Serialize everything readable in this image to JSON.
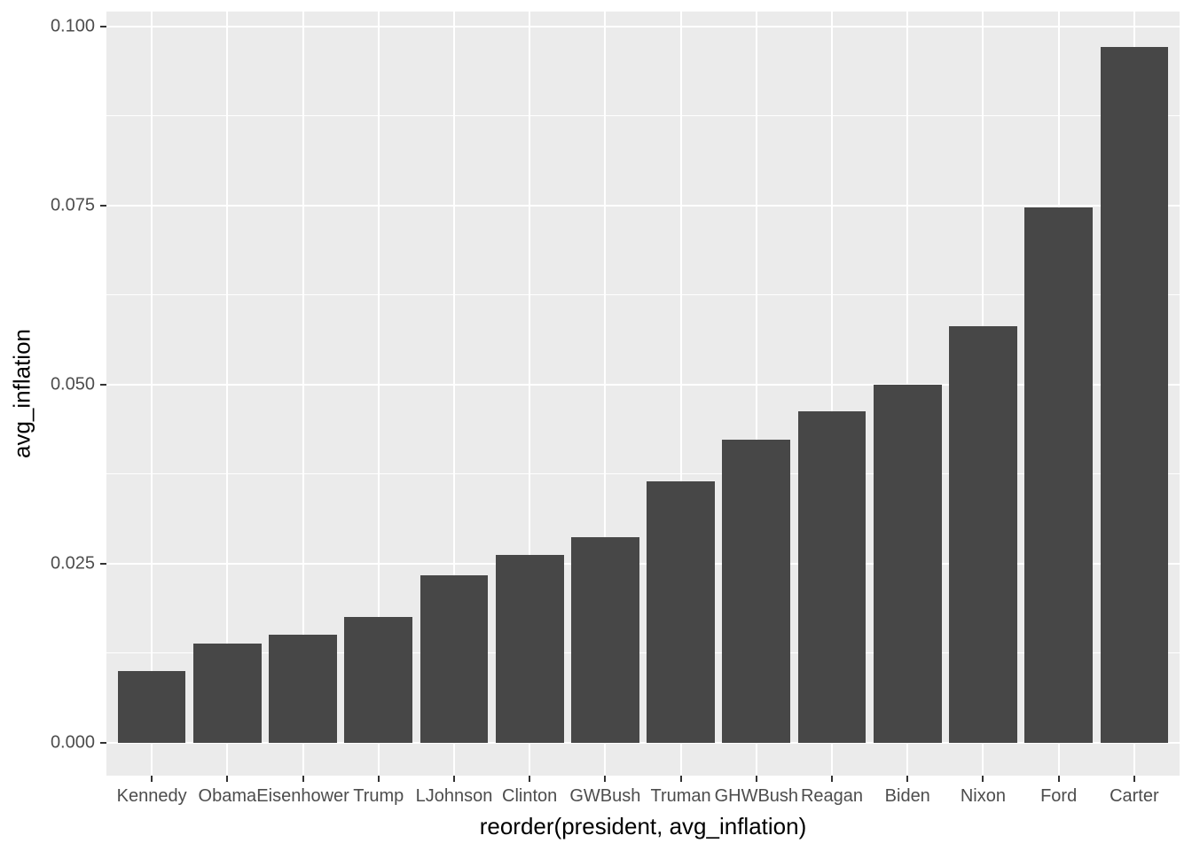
{
  "chart_data": {
    "type": "bar",
    "title": "",
    "xlabel": "reorder(president, avg_inflation)",
    "ylabel": "avg_inflation",
    "categories": [
      "Kennedy",
      "Obama",
      "Eisenhower",
      "Trump",
      "LJohnson",
      "Clinton",
      "GWBush",
      "Truman",
      "GHWBush",
      "Reagan",
      "Biden",
      "Nixon",
      "Ford",
      "Carter"
    ],
    "values": [
      0.01,
      0.0139,
      0.0151,
      0.0176,
      0.0234,
      0.0262,
      0.0287,
      0.0365,
      0.0423,
      0.0463,
      0.05,
      0.0582,
      0.0748,
      0.0971
    ],
    "y_tick_labels": [
      "0.000",
      "0.025",
      "0.050",
      "0.075",
      "0.100"
    ],
    "y_tick_values": [
      0,
      0.025,
      0.05,
      0.075,
      0.1
    ],
    "y_minor_values": [
      0.0125,
      0.0375,
      0.0625,
      0.0875
    ],
    "ylim": [
      -0.00486,
      0.10206
    ],
    "grid": true,
    "legend": false,
    "bar_width_fraction": 0.9,
    "colors": {
      "bar_fill": "#474747",
      "panel_bg": "#EBEBEB",
      "grid": "#FFFFFF",
      "tick": "#333333",
      "tick_label": "#4D4D4D",
      "axis_title": "#000000",
      "page_bg": "#FFFFFF"
    }
  }
}
